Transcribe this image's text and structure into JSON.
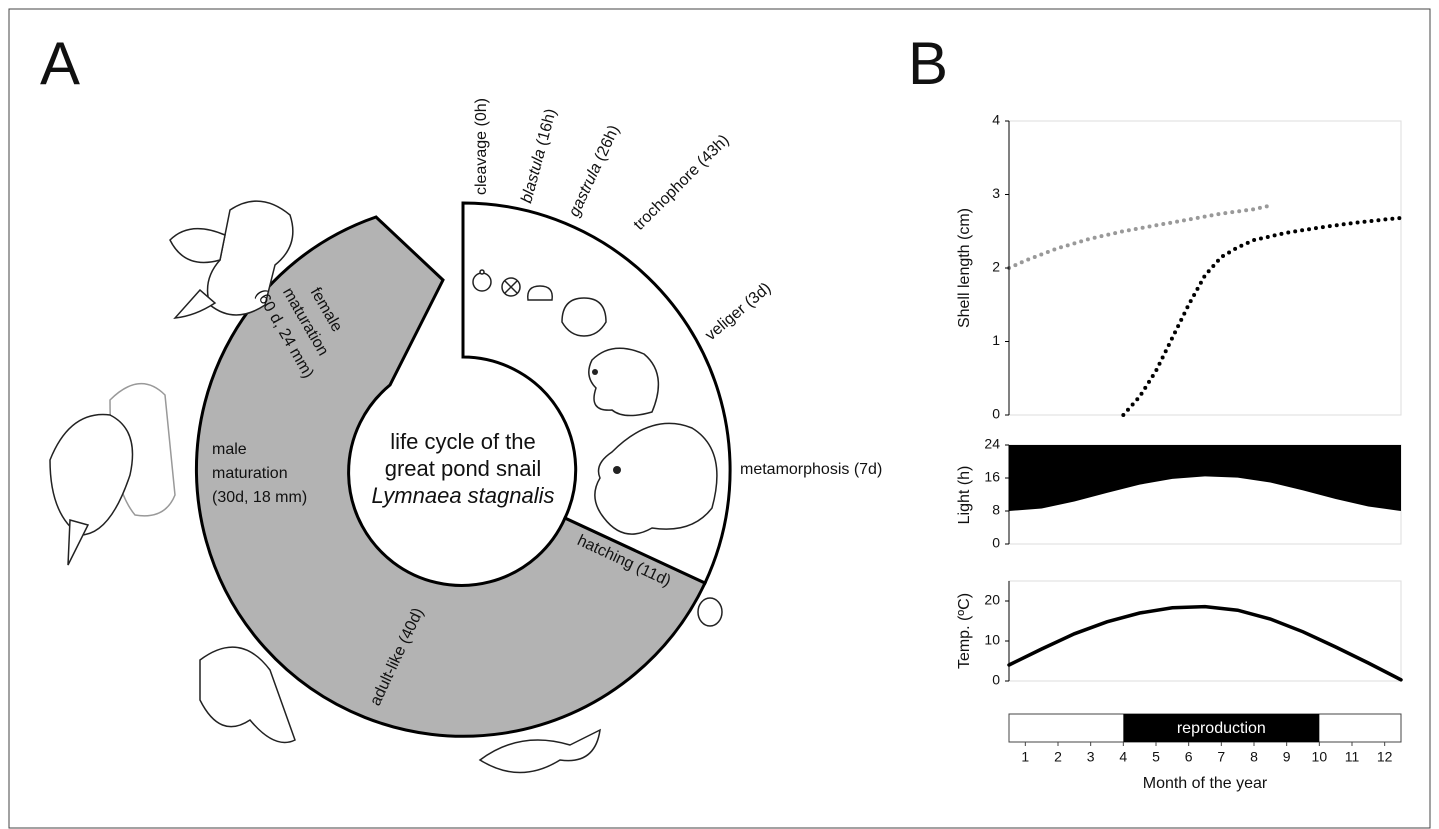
{
  "panel_labels": [
    "A",
    "B"
  ],
  "diagram": {
    "center_text": [
      "life cycle of the",
      "great pond snail",
      "Lymnaea stagnalis"
    ],
    "stages": [
      {
        "name": "cleavage",
        "time": "(0h)",
        "italic": false
      },
      {
        "name": "blastula",
        "time": "(16h)",
        "italic": true
      },
      {
        "name": "gastrula",
        "time": "(26h)",
        "italic": true
      },
      {
        "name": "trochophore",
        "time": "(43h)",
        "italic": false
      },
      {
        "name": "veliger",
        "time": "(3d)",
        "italic": false
      },
      {
        "name": "metamorphosis",
        "time": "(7d)",
        "italic": false
      }
    ],
    "phases": [
      {
        "lines": [
          "hatching (11d)"
        ]
      },
      {
        "lines": [
          "adult-like (40d)"
        ]
      },
      {
        "lines": [
          "male",
          "maturation",
          "(30d, 18 mm)"
        ]
      },
      {
        "lines": [
          "female",
          "maturation",
          "(60 d, 24 mm)"
        ]
      }
    ]
  },
  "chart_data": [
    {
      "type": "line",
      "y_label": "Shell length (cm)",
      "line_style": "dotted",
      "xlim": [
        0.5,
        12.5
      ],
      "ylim": [
        0,
        4
      ],
      "yticks": [
        0,
        1,
        2,
        3,
        4
      ],
      "series": [
        {
          "color": "#999999",
          "x": [
            0.5,
            1,
            2,
            3,
            4,
            5,
            6,
            7,
            8,
            8.5
          ],
          "values": [
            2.0,
            2.1,
            2.27,
            2.4,
            2.5,
            2.58,
            2.66,
            2.74,
            2.8,
            2.85
          ]
        },
        {
          "color": "#000000",
          "x": [
            4,
            4.5,
            5,
            5.5,
            6,
            6.5,
            7,
            7.5,
            8,
            9,
            10,
            11,
            12,
            12.5
          ],
          "values": [
            0,
            0.25,
            0.6,
            1.05,
            1.5,
            1.9,
            2.15,
            2.28,
            2.38,
            2.48,
            2.55,
            2.61,
            2.66,
            2.68
          ]
        }
      ]
    },
    {
      "type": "area",
      "y_label": "Light (h)",
      "xlim": [
        0.5,
        12.5
      ],
      "ylim": [
        0,
        24
      ],
      "yticks": [
        0,
        8,
        16,
        24
      ],
      "series": [
        {
          "color": "#000000",
          "x": [
            0.5,
            1.5,
            2.5,
            3.5,
            4.5,
            5.5,
            6.5,
            7.5,
            8.5,
            9.5,
            10.5,
            11.5,
            12.5
          ],
          "values": [
            8,
            8.6,
            10.3,
            12.4,
            14.4,
            15.8,
            16.4,
            16.1,
            14.9,
            13,
            10.9,
            9.1,
            8
          ]
        }
      ]
    },
    {
      "type": "line",
      "y_label": "Temp. (ºC)",
      "line_style": "solid",
      "xlim": [
        0.5,
        12.5
      ],
      "ylim": [
        0,
        25
      ],
      "yticks": [
        0,
        10,
        20
      ],
      "series": [
        {
          "color": "#000000",
          "x": [
            0.5,
            1.5,
            2.5,
            3.5,
            4.5,
            5.5,
            6.5,
            7.5,
            8.5,
            9.5,
            10.5,
            11.5,
            12.5
          ],
          "values": [
            4,
            8,
            11.8,
            14.8,
            17,
            18.3,
            18.6,
            17.7,
            15.5,
            12.3,
            8.5,
            4.5,
            0.3
          ]
        }
      ]
    },
    {
      "type": "range",
      "label": "reproduction",
      "color": "#000000",
      "start": 4,
      "end": 10,
      "x_label": "Month of the year",
      "xlim": [
        0.5,
        12.5
      ],
      "xticks": [
        1,
        2,
        3,
        4,
        5,
        6,
        7,
        8,
        9,
        10,
        11,
        12
      ]
    }
  ]
}
